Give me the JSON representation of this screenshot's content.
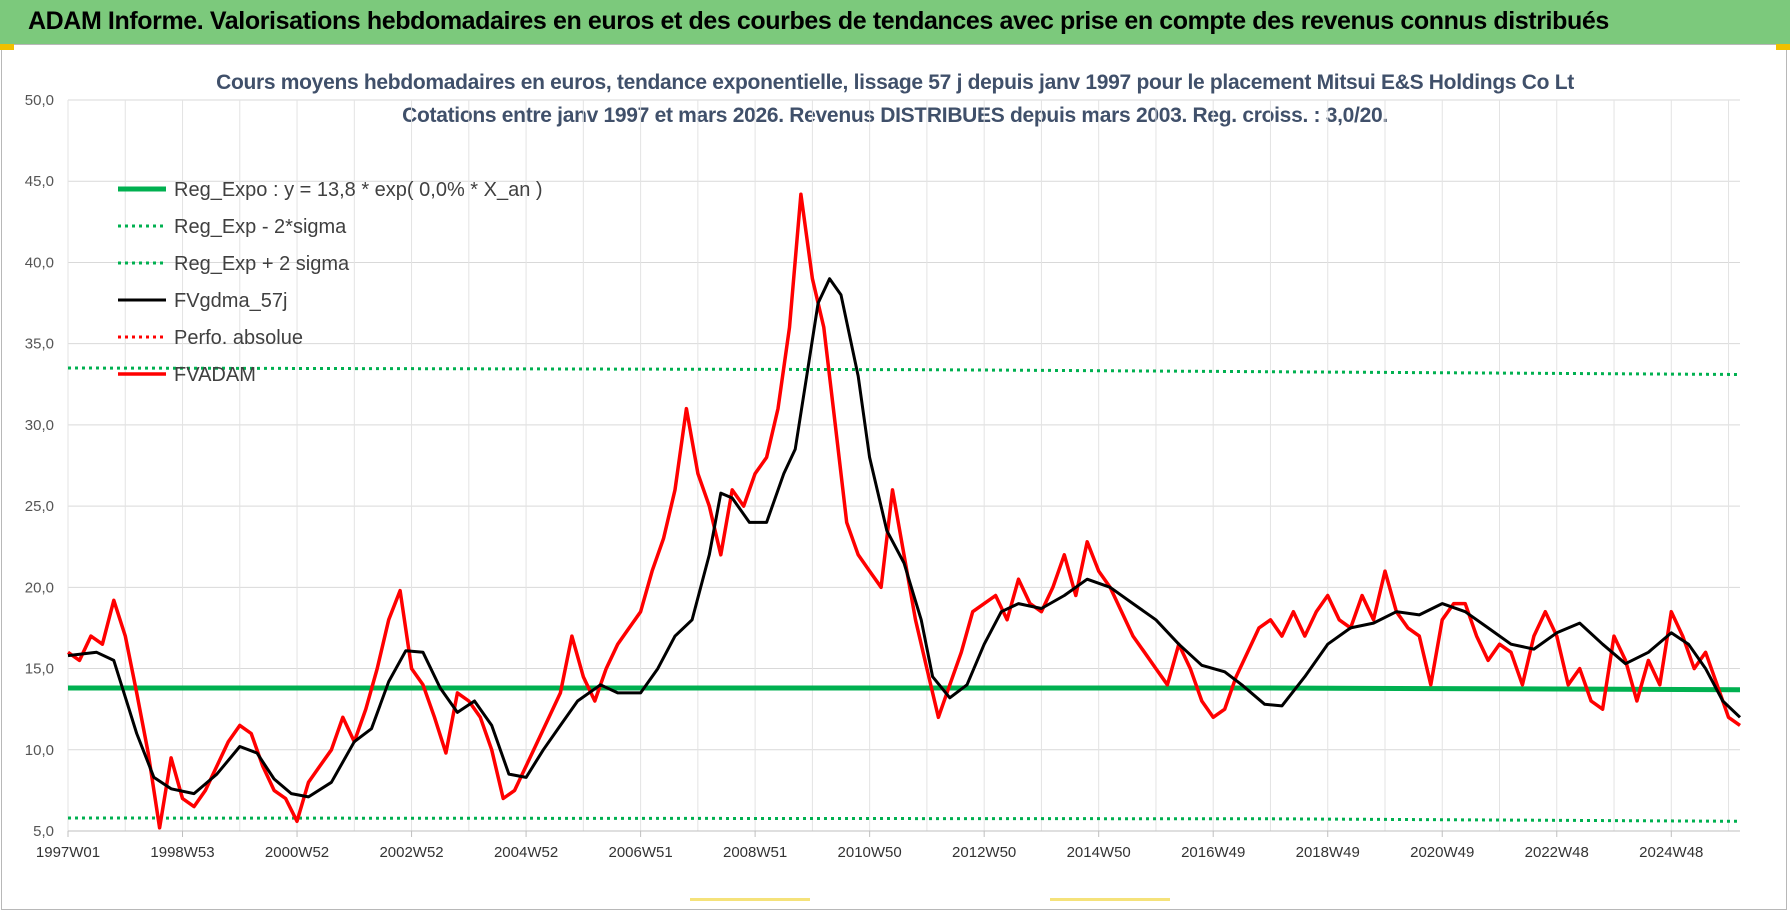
{
  "banner": {
    "title": "ADAM Informe. Valorisations hebdomadaires en euros et des courbes de tendances avec prise en compte des revenus connus distribués",
    "color": "#7cc97c"
  },
  "chart_data": {
    "type": "line",
    "title": "Cours moyens hebdomadaires en euros, tendance exponentielle, lissage 57 j depuis janv 1997 pour le placement Mitsui E&S Holdings Co Lt",
    "subtitle": "Cotations entre janv 1997 et mars 2026. Revenus DISTRIBUES depuis mars 2003. Reg. croiss. : 3,0/20.",
    "ylim": [
      5,
      50
    ],
    "y_ticks": [
      "5,0",
      "10,0",
      "15,0",
      "20,0",
      "25,0",
      "30,0",
      "35,0",
      "40,0",
      "45,0",
      "50,0"
    ],
    "x_ticks": [
      "1997W01",
      "1998W53",
      "2000W52",
      "2002W52",
      "2004W52",
      "2006W51",
      "2008W51",
      "2010W50",
      "2012W50",
      "2014W50",
      "2016W49",
      "2018W49",
      "2020W49",
      "2022W48",
      "2024W48"
    ],
    "xlim": [
      1997.0,
      2026.2
    ],
    "grid": true,
    "legend_position": "top-left",
    "series": [
      {
        "name": "Reg_Expo : y = 13,8 * exp( 0,0% *  X_an )",
        "color": "#00b050",
        "style": "solid-thick",
        "points": [
          [
            1997.0,
            13.8
          ],
          [
            2018.0,
            13.8
          ],
          [
            2026.2,
            13.7
          ]
        ]
      },
      {
        "name": "Reg_Exp - 2*sigma",
        "color": "#00b050",
        "style": "dotted",
        "points": [
          [
            1997.0,
            5.8
          ],
          [
            2018.0,
            5.75
          ],
          [
            2026.2,
            5.6
          ]
        ]
      },
      {
        "name": "Reg_Exp + 2 sigma",
        "color": "#00b050",
        "style": "dotted",
        "points": [
          [
            1997.0,
            33.5
          ],
          [
            2012.0,
            33.4
          ],
          [
            2026.2,
            33.1
          ]
        ]
      },
      {
        "name": "FVgdma_57j",
        "color": "#000000",
        "style": "solid",
        "points": [
          [
            1997.0,
            15.8
          ],
          [
            1997.5,
            16.0
          ],
          [
            1997.8,
            15.5
          ],
          [
            1998.2,
            11.0
          ],
          [
            1998.5,
            8.3
          ],
          [
            1998.8,
            7.6
          ],
          [
            1999.2,
            7.3
          ],
          [
            1999.6,
            8.5
          ],
          [
            2000.0,
            10.2
          ],
          [
            2000.3,
            9.8
          ],
          [
            2000.6,
            8.2
          ],
          [
            2000.9,
            7.3
          ],
          [
            2001.2,
            7.1
          ],
          [
            2001.6,
            8.0
          ],
          [
            2002.0,
            10.5
          ],
          [
            2002.3,
            11.3
          ],
          [
            2002.6,
            14.2
          ],
          [
            2002.9,
            16.1
          ],
          [
            2003.2,
            16.0
          ],
          [
            2003.5,
            13.8
          ],
          [
            2003.8,
            12.3
          ],
          [
            2004.1,
            13.0
          ],
          [
            2004.4,
            11.5
          ],
          [
            2004.7,
            8.5
          ],
          [
            2005.0,
            8.3
          ],
          [
            2005.3,
            10.0
          ],
          [
            2005.6,
            11.5
          ],
          [
            2005.9,
            13.0
          ],
          [
            2006.3,
            14.0
          ],
          [
            2006.6,
            13.5
          ],
          [
            2007.0,
            13.5
          ],
          [
            2007.3,
            15.0
          ],
          [
            2007.6,
            17.0
          ],
          [
            2007.9,
            18.0
          ],
          [
            2008.2,
            22.0
          ],
          [
            2008.4,
            25.8
          ],
          [
            2008.6,
            25.5
          ],
          [
            2008.9,
            24.0
          ],
          [
            2009.2,
            24.0
          ],
          [
            2009.5,
            27.0
          ],
          [
            2009.7,
            28.5
          ],
          [
            2009.9,
            33.0
          ],
          [
            2010.1,
            37.5
          ],
          [
            2010.3,
            39.0
          ],
          [
            2010.5,
            38.0
          ],
          [
            2010.8,
            33.0
          ],
          [
            2011.0,
            28.0
          ],
          [
            2011.3,
            23.5
          ],
          [
            2011.6,
            21.5
          ],
          [
            2011.9,
            18.0
          ],
          [
            2012.1,
            14.5
          ],
          [
            2012.4,
            13.2
          ],
          [
            2012.7,
            14.0
          ],
          [
            2013.0,
            16.5
          ],
          [
            2013.3,
            18.5
          ],
          [
            2013.6,
            19.0
          ],
          [
            2014.0,
            18.7
          ],
          [
            2014.4,
            19.5
          ],
          [
            2014.8,
            20.5
          ],
          [
            2015.2,
            20.0
          ],
          [
            2015.6,
            19.0
          ],
          [
            2016.0,
            18.0
          ],
          [
            2016.4,
            16.5
          ],
          [
            2016.8,
            15.2
          ],
          [
            2017.2,
            14.8
          ],
          [
            2017.5,
            14.0
          ],
          [
            2017.9,
            12.8
          ],
          [
            2018.2,
            12.7
          ],
          [
            2018.6,
            14.5
          ],
          [
            2019.0,
            16.5
          ],
          [
            2019.4,
            17.5
          ],
          [
            2019.8,
            17.8
          ],
          [
            2020.2,
            18.5
          ],
          [
            2020.6,
            18.3
          ],
          [
            2021.0,
            19.0
          ],
          [
            2021.4,
            18.5
          ],
          [
            2021.8,
            17.5
          ],
          [
            2022.2,
            16.5
          ],
          [
            2022.6,
            16.2
          ],
          [
            2023.0,
            17.2
          ],
          [
            2023.4,
            17.8
          ],
          [
            2023.8,
            16.5
          ],
          [
            2024.2,
            15.3
          ],
          [
            2024.6,
            16.0
          ],
          [
            2025.0,
            17.2
          ],
          [
            2025.3,
            16.5
          ],
          [
            2025.6,
            15.0
          ],
          [
            2025.9,
            13.0
          ],
          [
            2026.2,
            12.0
          ]
        ]
      },
      {
        "name": "Perfo. absolue",
        "color": "#ff0000",
        "style": "dotted",
        "points": []
      },
      {
        "name": "FVADAM",
        "color": "#ff0000",
        "style": "solid-thick",
        "points": [
          [
            1997.0,
            16.0
          ],
          [
            1997.2,
            15.5
          ],
          [
            1997.4,
            17.0
          ],
          [
            1997.6,
            16.5
          ],
          [
            1997.8,
            19.2
          ],
          [
            1998.0,
            17.0
          ],
          [
            1998.2,
            13.5
          ],
          [
            1998.4,
            9.8
          ],
          [
            1998.6,
            5.2
          ],
          [
            1998.8,
            9.5
          ],
          [
            1999.0,
            7.0
          ],
          [
            1999.2,
            6.5
          ],
          [
            1999.4,
            7.5
          ],
          [
            1999.6,
            9.0
          ],
          [
            1999.8,
            10.5
          ],
          [
            2000.0,
            11.5
          ],
          [
            2000.2,
            11.0
          ],
          [
            2000.4,
            9.0
          ],
          [
            2000.6,
            7.5
          ],
          [
            2000.8,
            7.0
          ],
          [
            2001.0,
            5.6
          ],
          [
            2001.2,
            8.0
          ],
          [
            2001.4,
            9.0
          ],
          [
            2001.6,
            10.0
          ],
          [
            2001.8,
            12.0
          ],
          [
            2002.0,
            10.5
          ],
          [
            2002.2,
            12.5
          ],
          [
            2002.4,
            15.0
          ],
          [
            2002.6,
            18.0
          ],
          [
            2002.8,
            19.8
          ],
          [
            2003.0,
            15.0
          ],
          [
            2003.2,
            14.0
          ],
          [
            2003.4,
            12.0
          ],
          [
            2003.6,
            9.8
          ],
          [
            2003.8,
            13.5
          ],
          [
            2004.0,
            13.0
          ],
          [
            2004.2,
            12.0
          ],
          [
            2004.4,
            10.0
          ],
          [
            2004.6,
            7.0
          ],
          [
            2004.8,
            7.5
          ],
          [
            2005.0,
            9.0
          ],
          [
            2005.2,
            10.5
          ],
          [
            2005.4,
            12.0
          ],
          [
            2005.6,
            13.5
          ],
          [
            2005.8,
            17.0
          ],
          [
            2006.0,
            14.5
          ],
          [
            2006.2,
            13.0
          ],
          [
            2006.4,
            15.0
          ],
          [
            2006.6,
            16.5
          ],
          [
            2006.8,
            17.5
          ],
          [
            2007.0,
            18.5
          ],
          [
            2007.2,
            21.0
          ],
          [
            2007.4,
            23.0
          ],
          [
            2007.6,
            26.0
          ],
          [
            2007.8,
            31.0
          ],
          [
            2008.0,
            27.0
          ],
          [
            2008.2,
            25.0
          ],
          [
            2008.4,
            22.0
          ],
          [
            2008.6,
            26.0
          ],
          [
            2008.8,
            25.0
          ],
          [
            2009.0,
            27.0
          ],
          [
            2009.2,
            28.0
          ],
          [
            2009.4,
            31.0
          ],
          [
            2009.6,
            36.0
          ],
          [
            2009.8,
            44.2
          ],
          [
            2010.0,
            39.0
          ],
          [
            2010.2,
            36.0
          ],
          [
            2010.4,
            30.0
          ],
          [
            2010.6,
            24.0
          ],
          [
            2010.8,
            22.0
          ],
          [
            2011.0,
            21.0
          ],
          [
            2011.2,
            20.0
          ],
          [
            2011.4,
            26.0
          ],
          [
            2011.6,
            22.0
          ],
          [
            2011.8,
            18.0
          ],
          [
            2012.0,
            15.0
          ],
          [
            2012.2,
            12.0
          ],
          [
            2012.4,
            14.0
          ],
          [
            2012.6,
            16.0
          ],
          [
            2012.8,
            18.5
          ],
          [
            2013.0,
            19.0
          ],
          [
            2013.2,
            19.5
          ],
          [
            2013.4,
            18.0
          ],
          [
            2013.6,
            20.5
          ],
          [
            2013.8,
            19.0
          ],
          [
            2014.0,
            18.5
          ],
          [
            2014.2,
            20.0
          ],
          [
            2014.4,
            22.0
          ],
          [
            2014.6,
            19.5
          ],
          [
            2014.8,
            22.8
          ],
          [
            2015.0,
            21.0
          ],
          [
            2015.2,
            20.0
          ],
          [
            2015.4,
            18.5
          ],
          [
            2015.6,
            17.0
          ],
          [
            2015.8,
            16.0
          ],
          [
            2016.0,
            15.0
          ],
          [
            2016.2,
            14.0
          ],
          [
            2016.4,
            16.5
          ],
          [
            2016.6,
            15.0
          ],
          [
            2016.8,
            13.0
          ],
          [
            2017.0,
            12.0
          ],
          [
            2017.2,
            12.5
          ],
          [
            2017.4,
            14.5
          ],
          [
            2017.6,
            16.0
          ],
          [
            2017.8,
            17.5
          ],
          [
            2018.0,
            18.0
          ],
          [
            2018.2,
            17.0
          ],
          [
            2018.4,
            18.5
          ],
          [
            2018.6,
            17.0
          ],
          [
            2018.8,
            18.5
          ],
          [
            2019.0,
            19.5
          ],
          [
            2019.2,
            18.0
          ],
          [
            2019.4,
            17.5
          ],
          [
            2019.6,
            19.5
          ],
          [
            2019.8,
            18.0
          ],
          [
            2020.0,
            21.0
          ],
          [
            2020.2,
            18.5
          ],
          [
            2020.4,
            17.5
          ],
          [
            2020.6,
            17.0
          ],
          [
            2020.8,
            14.0
          ],
          [
            2021.0,
            18.0
          ],
          [
            2021.2,
            19.0
          ],
          [
            2021.4,
            19.0
          ],
          [
            2021.6,
            17.0
          ],
          [
            2021.8,
            15.5
          ],
          [
            2022.0,
            16.5
          ],
          [
            2022.2,
            16.0
          ],
          [
            2022.4,
            14.0
          ],
          [
            2022.6,
            17.0
          ],
          [
            2022.8,
            18.5
          ],
          [
            2023.0,
            17.0
          ],
          [
            2023.2,
            14.0
          ],
          [
            2023.4,
            15.0
          ],
          [
            2023.6,
            13.0
          ],
          [
            2023.8,
            12.5
          ],
          [
            2024.0,
            17.0
          ],
          [
            2024.2,
            15.5
          ],
          [
            2024.4,
            13.0
          ],
          [
            2024.6,
            15.5
          ],
          [
            2024.8,
            14.0
          ],
          [
            2025.0,
            18.5
          ],
          [
            2025.2,
            17.0
          ],
          [
            2025.4,
            15.0
          ],
          [
            2025.6,
            16.0
          ],
          [
            2025.8,
            14.0
          ],
          [
            2026.0,
            12.0
          ],
          [
            2026.2,
            11.5
          ]
        ]
      }
    ]
  }
}
